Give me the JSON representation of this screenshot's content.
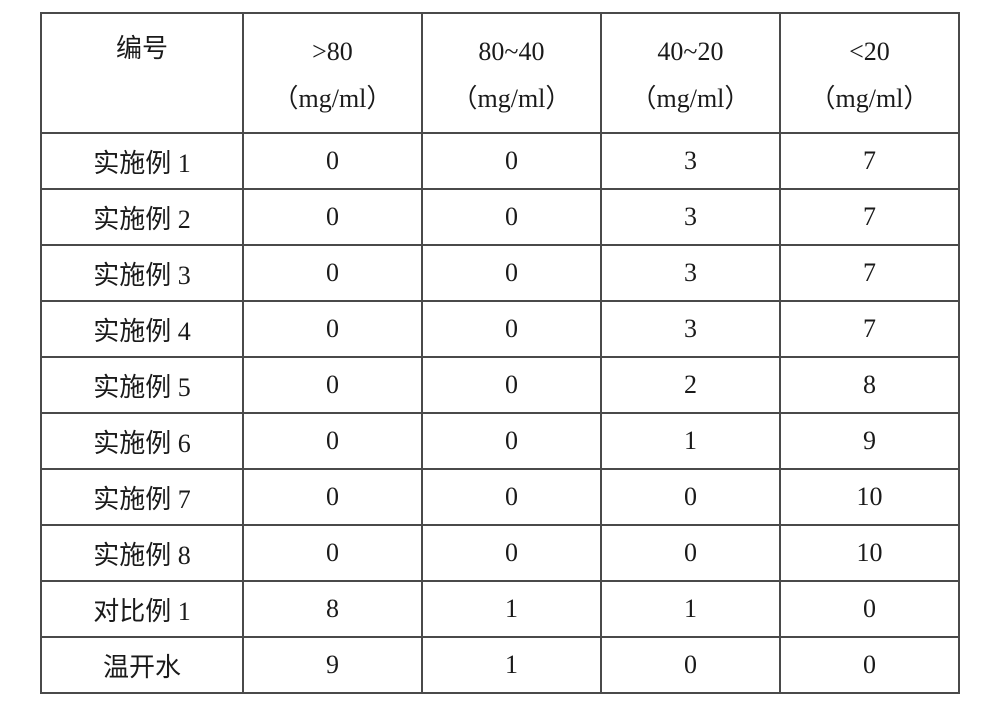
{
  "table": {
    "columns": [
      "编号",
      ">80",
      "80~40",
      "40~20",
      "<20"
    ],
    "unit": "（mg/ml）",
    "rows": [
      [
        "实施例 1",
        "0",
        "0",
        "3",
        "7"
      ],
      [
        "实施例 2",
        "0",
        "0",
        "3",
        "7"
      ],
      [
        "实施例 3",
        "0",
        "0",
        "3",
        "7"
      ],
      [
        "实施例 4",
        "0",
        "0",
        "3",
        "7"
      ],
      [
        "实施例 5",
        "0",
        "0",
        "2",
        "8"
      ],
      [
        "实施例 6",
        "0",
        "0",
        "1",
        "9"
      ],
      [
        "实施例 7",
        "0",
        "0",
        "0",
        "10"
      ],
      [
        "实施例 8",
        "0",
        "0",
        "0",
        "10"
      ],
      [
        "对比例 1",
        "8",
        "1",
        "1",
        "0"
      ],
      [
        "温开水",
        "9",
        "1",
        "0",
        "0"
      ]
    ],
    "border_color": "#4a4a4a",
    "text_color": "#1a1a1a",
    "background_color": "#ffffff",
    "font_family": "SimSun",
    "font_size_pt": 20,
    "col_widths_pct": [
      22,
      19.5,
      19.5,
      19.5,
      19.5
    ]
  }
}
